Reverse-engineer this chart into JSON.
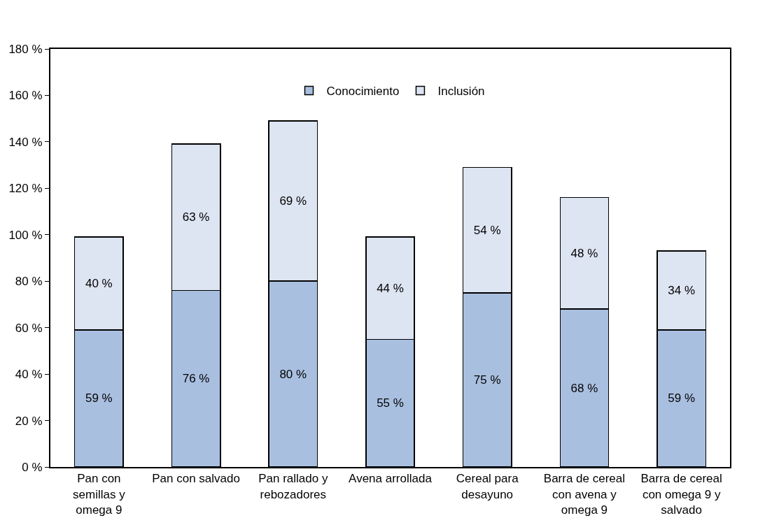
{
  "chart_data": {
    "type": "bar",
    "stacked": true,
    "categories": [
      "Pan con semillas y omega 9",
      "Pan con salvado",
      "Pan rallado y rebozadores",
      "Avena arrollada",
      "Cereal para desayuno",
      "Barra de cereal con avena y omega 9",
      "Barra de cereal con omega 9 y salvado"
    ],
    "series": [
      {
        "name": "Conocimiento",
        "color": "#a9bfe0",
        "values": [
          59,
          76,
          80,
          55,
          75,
          68,
          59
        ],
        "value_labels": [
          "59 %",
          "76 %",
          "80 %",
          "55 %",
          "75 %",
          "68 %",
          "59 %"
        ]
      },
      {
        "name": "Inclusión",
        "color": "#dde4f2",
        "values": [
          40,
          63,
          69,
          44,
          54,
          48,
          34
        ],
        "value_labels": [
          "40 %",
          "63 %",
          "69 %",
          "44 %",
          "54 %",
          "48 %",
          "34 %"
        ]
      }
    ],
    "ylim": [
      0,
      180
    ],
    "yticks": [
      {
        "value": 0,
        "label": "0 %"
      },
      {
        "value": 20,
        "label": "20 %"
      },
      {
        "value": 40,
        "label": "40 %"
      },
      {
        "value": 60,
        "label": "60 %"
      },
      {
        "value": 80,
        "label": "80 %"
      },
      {
        "value": 100,
        "label": "100 %"
      },
      {
        "value": 120,
        "label": "120 %"
      },
      {
        "value": 140,
        "label": "140 %"
      },
      {
        "value": 160,
        "label": "160 %"
      },
      {
        "value": 180,
        "label": "180 %"
      }
    ],
    "legend": "top"
  }
}
